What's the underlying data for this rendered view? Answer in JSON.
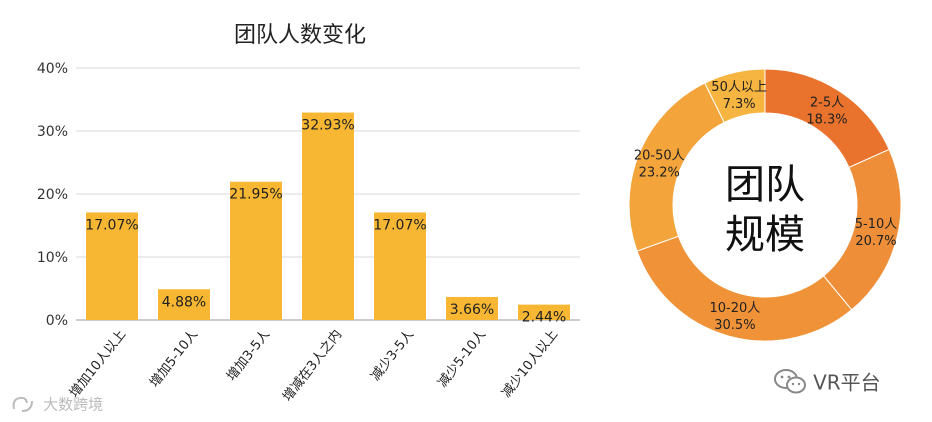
{
  "chart_data": [
    {
      "type": "bar",
      "title": "团队人数变化",
      "categories": [
        "增加10人以上",
        "增加5-10人",
        "增加3-5人",
        "增减在3人之内",
        "减少3-5人",
        "减少5-10人",
        "减少10人以上"
      ],
      "values": [
        17.07,
        4.88,
        21.95,
        32.93,
        17.07,
        3.66,
        2.44
      ],
      "data_labels": [
        "17.07%",
        "4.88%",
        "21.95%",
        "32.93%",
        "17.07%",
        "3.66%",
        "2.44%"
      ],
      "ylim": [
        0,
        40
      ],
      "yticks": [
        "0%",
        "10%",
        "20%",
        "30%",
        "40%"
      ],
      "grid": true,
      "bar_color": "#F7B733"
    },
    {
      "type": "pie",
      "center_label": [
        "团队",
        "规模"
      ],
      "slices": [
        {
          "label": "2-5人",
          "value": 18.3,
          "pct": "18.3%",
          "color": "#E9722C"
        },
        {
          "label": "5-10人",
          "value": 20.7,
          "pct": "20.7%",
          "color": "#EE8E38"
        },
        {
          "label": "10-20人",
          "value": 30.5,
          "pct": "30.5%",
          "color": "#F09338"
        },
        {
          "label": "20-50人",
          "value": 23.2,
          "pct": "23.2%",
          "color": "#F3A53B"
        },
        {
          "label": "50人以上",
          "value": 7.3,
          "pct": "7.3%",
          "color": "#F6B540"
        }
      ]
    }
  ],
  "watermarks": {
    "left": "大数跨境",
    "right": "VR平台"
  },
  "icons": {
    "left_watermark": "brand-logo-icon",
    "right_watermark": "wechat-icon"
  }
}
